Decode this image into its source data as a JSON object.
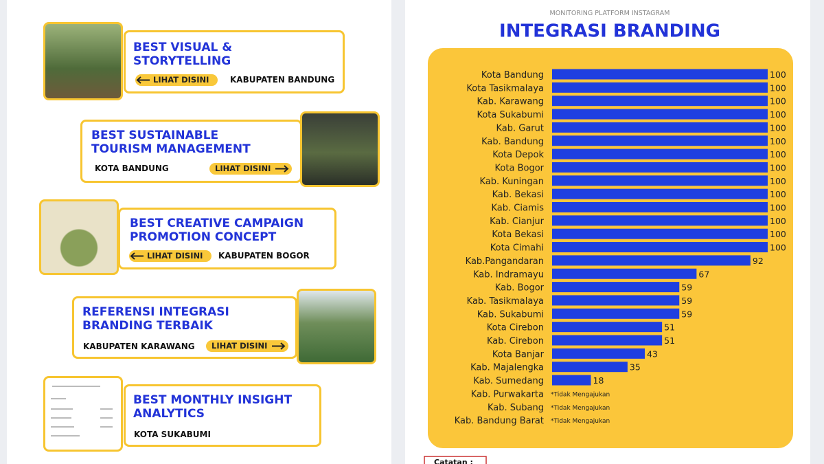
{
  "awards": [
    {
      "title": "BEST VISUAL & STORYTELLING",
      "region": "KABUPATEN BANDUNG",
      "button": "LIHAT DISINI"
    },
    {
      "title": "BEST SUSTAINABLE TOURISM MANAGEMENT",
      "region": "KOTA BANDUNG",
      "button": "LIHAT DISINI"
    },
    {
      "title": "BEST CREATIVE CAMPAIGN PROMOTION CONCEPT",
      "region": "KABUPATEN BOGOR",
      "button": "LIHAT DISINI"
    },
    {
      "title": "REFERENSI INTEGRASI BRANDING TERBAIK",
      "region": "KABUPATEN KARAWANG",
      "button": "LIHAT DISINI"
    },
    {
      "title": "BEST MONTHLY INSIGHT ANALYTICS",
      "region": "KOTA SUKABUMI"
    }
  ],
  "footer_note": "Catatan :",
  "chart_data": {
    "type": "hbar",
    "subtitle": "MONITORING PLATFORM INSTAGRAM",
    "title": "INTEGRASI BRANDING",
    "categories": [
      "Kota Bandung",
      "Kota Tasikmalaya",
      "Kab. Karawang",
      "Kota Sukabumi",
      "Kab. Garut",
      "Kab. Bandung",
      "Kota Depok",
      "Kota Bogor",
      "Kab. Kuningan",
      "Kab. Bekasi",
      "Kab. Ciamis",
      "Kab. Cianjur",
      "Kota Bekasi",
      "Kota Cimahi",
      "Kab.Pangandaran",
      "Kab. Indramayu",
      "Kab. Bogor",
      "Kab. Tasikmalaya",
      "Kab. Sukabumi",
      "Kota Cirebon",
      "Kab. Cirebon",
      "Kota Banjar",
      "Kab. Majalengka",
      "Kab. Sumedang",
      "Kab. Purwakarta",
      "Kab. Subang",
      "Kab. Bandung Barat"
    ],
    "values": [
      100,
      100,
      100,
      100,
      100,
      100,
      100,
      100,
      100,
      100,
      100,
      100,
      100,
      100,
      92,
      67,
      59,
      59,
      59,
      51,
      51,
      43,
      35,
      18,
      null,
      null,
      null
    ],
    "value_labels": [
      "100",
      "100",
      "100",
      "100",
      "100",
      "100",
      "100",
      "100",
      "100",
      "100",
      "100",
      "100",
      "100",
      "100",
      "92",
      "67",
      "59",
      "59",
      "59",
      "51",
      "51",
      "43",
      "35",
      "18",
      "*Tidak Mengajukan",
      "*Tidak Mengajukan",
      "*Tidak Mengajukan"
    ],
    "xlim": [
      0,
      100
    ],
    "color": "#1f3fe0",
    "panel_color": "#fbc63a"
  }
}
